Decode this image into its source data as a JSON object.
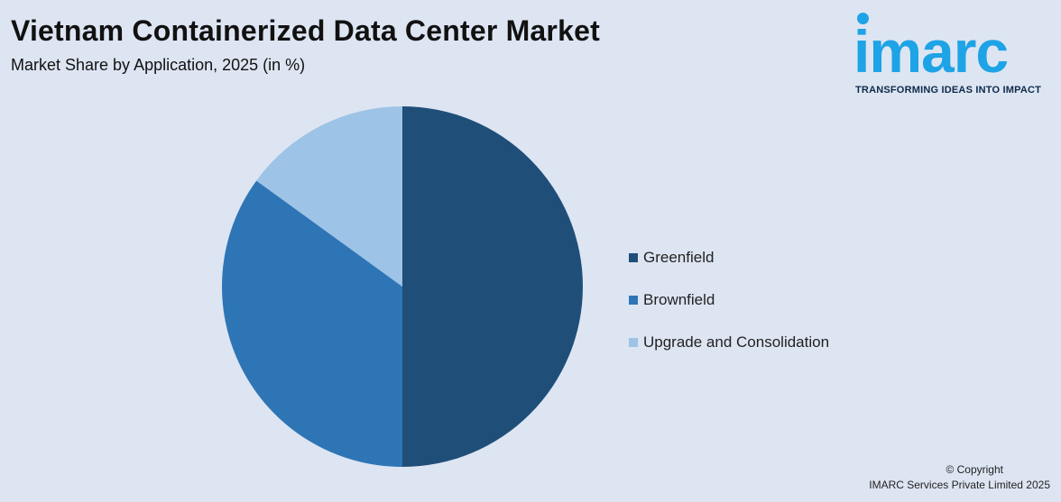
{
  "header": {
    "title": "Vietnam Containerized Data Center Market",
    "subtitle": "Market Share by Application, 2025 (in %)"
  },
  "logo": {
    "wordmark": "imarc",
    "tagline": "TRANSFORMING IDEAS INTO IMPACT",
    "color": "#1ea3e6"
  },
  "chart_data": {
    "type": "pie",
    "title": "Vietnam Containerized Data Center Market",
    "subtitle": "Market Share by Application, 2025 (in %)",
    "legend_position": "right",
    "series": [
      {
        "name": "Greenfield",
        "value": 50,
        "color": "#1f4e79"
      },
      {
        "name": "Brownfield",
        "value": 35,
        "color": "#2e75b6"
      },
      {
        "name": "Upgrade and Consolidation",
        "value": 15,
        "color": "#9dc3e6"
      }
    ]
  },
  "footer": {
    "copyright_line1": "© Copyright",
    "copyright_line2": "IMARC Services Private Limited 2025"
  }
}
